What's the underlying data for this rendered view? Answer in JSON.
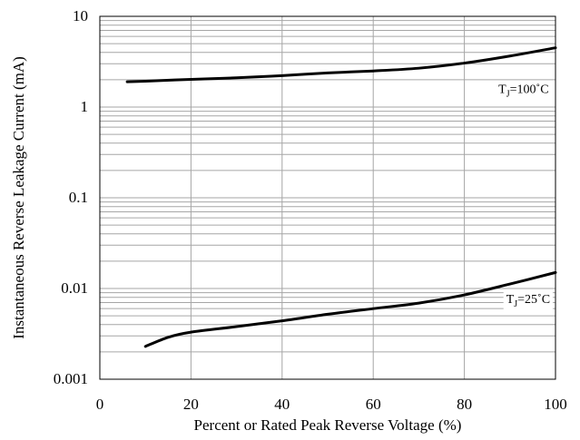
{
  "chart_data": {
    "type": "line",
    "title": "",
    "xlabel": "Percent or Rated Peak Reverse Voltage (%)",
    "ylabel": "Instantaneous Reverse Leakage Current (mA)",
    "xlim": [
      0,
      100
    ],
    "ylim": [
      0.001,
      10
    ],
    "yscale": "log",
    "x_ticks": [
      0,
      20,
      40,
      60,
      80,
      100
    ],
    "x_tick_labels": [
      "0",
      "20",
      "40",
      "60",
      "80",
      "100"
    ],
    "y_ticks": [
      0.001,
      0.01,
      0.1,
      1,
      10
    ],
    "y_tick_labels": [
      "0.001",
      "0.01",
      "0.1",
      "1",
      "10"
    ],
    "grid": true,
    "legend": "none",
    "line_color": "#000000",
    "grid_color": "#a6a6a6",
    "series": [
      {
        "x": [
          6,
          10,
          20,
          30,
          40,
          50,
          60,
          70,
          80,
          90,
          100
        ],
        "y": [
          1.9,
          1.93,
          2.02,
          2.1,
          2.22,
          2.38,
          2.5,
          2.68,
          3.05,
          3.65,
          4.5
        ]
      },
      {
        "x": [
          10,
          15,
          20,
          30,
          40,
          50,
          60,
          70,
          80,
          90,
          100
        ],
        "y": [
          0.0023,
          0.0029,
          0.0033,
          0.0038,
          0.0044,
          0.0052,
          0.006,
          0.0069,
          0.0085,
          0.0112,
          0.015
        ]
      }
    ],
    "annotations": [
      {
        "prefix": "T",
        "sub": "J",
        "suffix": "=100˚C",
        "x": 93,
        "y": 1.6
      },
      {
        "prefix": "T",
        "sub": "J",
        "suffix": "=25˚C",
        "x": 94,
        "y": 0.0078
      }
    ]
  }
}
